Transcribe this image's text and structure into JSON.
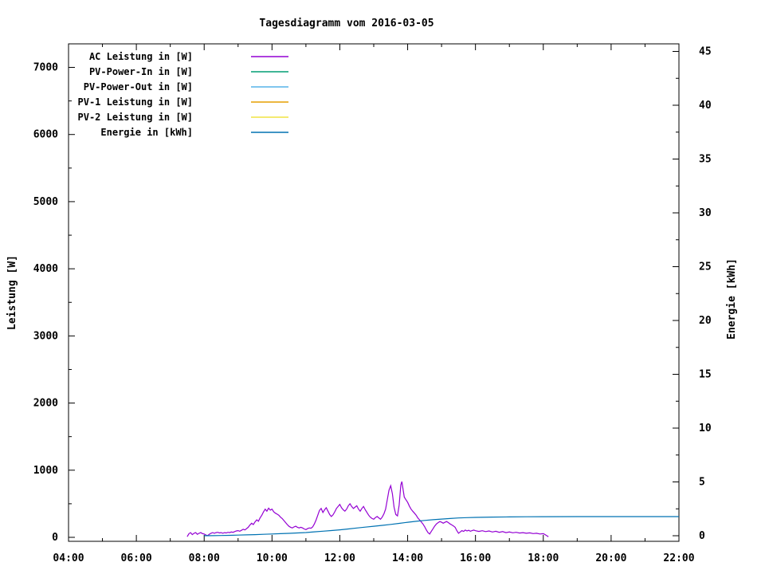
{
  "chart_data": {
    "type": "line",
    "title": "Tagesdiagramm vom 2016-03-05",
    "xlabel": "",
    "ylabel_left": "Leistung [W]",
    "ylabel_right": "Energie [kWh]",
    "grid": false,
    "legend_position": "top-left-inside",
    "background": "#ffffff",
    "border_color": "#000000",
    "x_range_hours": [
      4,
      22
    ],
    "x_major_ticks": [
      [
        4,
        "04:00"
      ],
      [
        6,
        "06:00"
      ],
      [
        8,
        "08:00"
      ],
      [
        10,
        "10:00"
      ],
      [
        12,
        "12:00"
      ],
      [
        14,
        "14:00"
      ],
      [
        16,
        "16:00"
      ],
      [
        18,
        "18:00"
      ],
      [
        20,
        "20:00"
      ],
      [
        22,
        "22:00"
      ]
    ],
    "x_minor_step_hours": 1,
    "y_left_range": [
      0,
      7400
    ],
    "y_left_major_ticks": [
      0,
      1000,
      2000,
      3000,
      4000,
      5000,
      6000,
      7000
    ],
    "y_left_minor_step": 500,
    "y_right_range": [
      0,
      45.5
    ],
    "y_right_major_ticks": [
      0,
      5,
      10,
      15,
      20,
      25,
      30,
      35,
      40,
      45
    ],
    "y_right_minor_step": 2.5,
    "series": [
      {
        "name": "AC Leistung in [W]",
        "color": "#9400D3",
        "axis": "left",
        "points": [
          [
            7.5,
            10
          ],
          [
            7.55,
            55
          ],
          [
            7.6,
            70
          ],
          [
            7.65,
            40
          ],
          [
            7.7,
            60
          ],
          [
            7.75,
            70
          ],
          [
            7.8,
            45
          ],
          [
            7.85,
            60
          ],
          [
            7.9,
            70
          ],
          [
            7.95,
            55
          ],
          [
            8.0,
            50
          ],
          [
            8.05,
            35
          ],
          [
            8.1,
            25
          ],
          [
            8.15,
            45
          ],
          [
            8.2,
            60
          ],
          [
            8.25,
            70
          ],
          [
            8.3,
            60
          ],
          [
            8.35,
            70
          ],
          [
            8.4,
            75
          ],
          [
            8.45,
            65
          ],
          [
            8.5,
            70
          ],
          [
            8.55,
            60
          ],
          [
            8.6,
            70
          ],
          [
            8.65,
            65
          ],
          [
            8.7,
            75
          ],
          [
            8.75,
            70
          ],
          [
            8.8,
            80
          ],
          [
            8.85,
            75
          ],
          [
            8.9,
            85
          ],
          [
            8.95,
            95
          ],
          [
            9.0,
            100
          ],
          [
            9.05,
            90
          ],
          [
            9.1,
            105
          ],
          [
            9.15,
            120
          ],
          [
            9.2,
            110
          ],
          [
            9.25,
            130
          ],
          [
            9.3,
            150
          ],
          [
            9.35,
            185
          ],
          [
            9.4,
            210
          ],
          [
            9.45,
            190
          ],
          [
            9.5,
            230
          ],
          [
            9.55,
            260
          ],
          [
            9.6,
            240
          ],
          [
            9.65,
            290
          ],
          [
            9.7,
            330
          ],
          [
            9.75,
            380
          ],
          [
            9.8,
            420
          ],
          [
            9.85,
            390
          ],
          [
            9.9,
            435
          ],
          [
            9.95,
            405
          ],
          [
            10.0,
            420
          ],
          [
            10.05,
            380
          ],
          [
            10.1,
            360
          ],
          [
            10.15,
            345
          ],
          [
            10.2,
            330
          ],
          [
            10.25,
            300
          ],
          [
            10.3,
            280
          ],
          [
            10.35,
            250
          ],
          [
            10.4,
            220
          ],
          [
            10.45,
            190
          ],
          [
            10.5,
            165
          ],
          [
            10.55,
            150
          ],
          [
            10.6,
            140
          ],
          [
            10.65,
            155
          ],
          [
            10.7,
            165
          ],
          [
            10.75,
            150
          ],
          [
            10.8,
            140
          ],
          [
            10.85,
            150
          ],
          [
            10.9,
            140
          ],
          [
            10.95,
            125
          ],
          [
            11.0,
            115
          ],
          [
            11.05,
            130
          ],
          [
            11.1,
            140
          ],
          [
            11.15,
            135
          ],
          [
            11.2,
            155
          ],
          [
            11.25,
            200
          ],
          [
            11.3,
            260
          ],
          [
            11.35,
            330
          ],
          [
            11.4,
            400
          ],
          [
            11.45,
            430
          ],
          [
            11.5,
            370
          ],
          [
            11.55,
            410
          ],
          [
            11.6,
            440
          ],
          [
            11.65,
            390
          ],
          [
            11.7,
            340
          ],
          [
            11.75,
            310
          ],
          [
            11.8,
            335
          ],
          [
            11.85,
            380
          ],
          [
            11.9,
            430
          ],
          [
            11.95,
            460
          ],
          [
            12.0,
            490
          ],
          [
            12.05,
            440
          ],
          [
            12.1,
            410
          ],
          [
            12.15,
            390
          ],
          [
            12.2,
            420
          ],
          [
            12.25,
            470
          ],
          [
            12.3,
            500
          ],
          [
            12.35,
            460
          ],
          [
            12.4,
            430
          ],
          [
            12.45,
            450
          ],
          [
            12.5,
            470
          ],
          [
            12.55,
            420
          ],
          [
            12.6,
            390
          ],
          [
            12.65,
            430
          ],
          [
            12.7,
            460
          ],
          [
            12.75,
            410
          ],
          [
            12.8,
            370
          ],
          [
            12.85,
            330
          ],
          [
            12.9,
            300
          ],
          [
            12.95,
            280
          ],
          [
            13.0,
            270
          ],
          [
            13.05,
            295
          ],
          [
            13.1,
            310
          ],
          [
            13.15,
            290
          ],
          [
            13.2,
            270
          ],
          [
            13.25,
            300
          ],
          [
            13.3,
            350
          ],
          [
            13.35,
            420
          ],
          [
            13.4,
            560
          ],
          [
            13.45,
            700
          ],
          [
            13.5,
            770
          ],
          [
            13.55,
            650
          ],
          [
            13.6,
            450
          ],
          [
            13.65,
            340
          ],
          [
            13.7,
            320
          ],
          [
            13.75,
            480
          ],
          [
            13.8,
            780
          ],
          [
            13.83,
            830
          ],
          [
            13.87,
            700
          ],
          [
            13.9,
            600
          ],
          [
            13.95,
            560
          ],
          [
            14.0,
            520
          ],
          [
            14.05,
            465
          ],
          [
            14.1,
            420
          ],
          [
            14.15,
            390
          ],
          [
            14.2,
            360
          ],
          [
            14.25,
            330
          ],
          [
            14.3,
            290
          ],
          [
            14.35,
            260
          ],
          [
            14.4,
            230
          ],
          [
            14.45,
            200
          ],
          [
            14.5,
            160
          ],
          [
            14.55,
            110
          ],
          [
            14.6,
            70
          ],
          [
            14.65,
            50
          ],
          [
            14.7,
            90
          ],
          [
            14.75,
            130
          ],
          [
            14.8,
            170
          ],
          [
            14.85,
            200
          ],
          [
            14.9,
            220
          ],
          [
            14.95,
            235
          ],
          [
            15.0,
            225
          ],
          [
            15.05,
            210
          ],
          [
            15.1,
            225
          ],
          [
            15.15,
            235
          ],
          [
            15.2,
            220
          ],
          [
            15.25,
            200
          ],
          [
            15.3,
            185
          ],
          [
            15.35,
            170
          ],
          [
            15.4,
            150
          ],
          [
            15.45,
            100
          ],
          [
            15.5,
            60
          ],
          [
            15.55,
            80
          ],
          [
            15.6,
            100
          ],
          [
            15.65,
            88
          ],
          [
            15.7,
            108
          ],
          [
            15.75,
            95
          ],
          [
            15.8,
            105
          ],
          [
            15.85,
            90
          ],
          [
            15.9,
            100
          ],
          [
            15.95,
            108
          ],
          [
            16.0,
            98
          ],
          [
            16.1,
            88
          ],
          [
            16.2,
            98
          ],
          [
            16.3,
            85
          ],
          [
            16.4,
            95
          ],
          [
            16.5,
            80
          ],
          [
            16.6,
            90
          ],
          [
            16.7,
            75
          ],
          [
            16.8,
            85
          ],
          [
            16.9,
            70
          ],
          [
            17.0,
            80
          ],
          [
            17.1,
            68
          ],
          [
            17.2,
            75
          ],
          [
            17.3,
            64
          ],
          [
            17.4,
            70
          ],
          [
            17.5,
            60
          ],
          [
            17.6,
            66
          ],
          [
            17.7,
            56
          ],
          [
            17.8,
            60
          ],
          [
            17.9,
            50
          ],
          [
            18.0,
            55
          ],
          [
            18.05,
            42
          ],
          [
            18.1,
            25
          ],
          [
            18.15,
            10
          ]
        ]
      },
      {
        "name": "PV-Power-In in [W]",
        "color": "#009E73",
        "axis": "left",
        "points": []
      },
      {
        "name": "PV-Power-Out in [W]",
        "color": "#56B4E9",
        "axis": "left",
        "points": []
      },
      {
        "name": "PV-1 Leistung in [W]",
        "color": "#E69F00",
        "axis": "left",
        "points": []
      },
      {
        "name": "PV-2 Leistung in [W]",
        "color": "#F0E442",
        "axis": "left",
        "points": []
      },
      {
        "name": "Energie in [kWh]",
        "color": "#0072B2",
        "axis": "right",
        "points": [
          [
            8.0,
            0.0
          ],
          [
            8.25,
            0.01
          ],
          [
            8.5,
            0.02
          ],
          [
            8.75,
            0.04
          ],
          [
            9.0,
            0.06
          ],
          [
            9.25,
            0.08
          ],
          [
            9.5,
            0.1
          ],
          [
            9.75,
            0.13
          ],
          [
            10.0,
            0.16
          ],
          [
            10.25,
            0.19
          ],
          [
            10.5,
            0.22
          ],
          [
            10.75,
            0.26
          ],
          [
            11.0,
            0.3
          ],
          [
            11.25,
            0.36
          ],
          [
            11.5,
            0.42
          ],
          [
            11.75,
            0.48
          ],
          [
            12.0,
            0.55
          ],
          [
            12.25,
            0.63
          ],
          [
            12.5,
            0.72
          ],
          [
            12.75,
            0.8
          ],
          [
            13.0,
            0.88
          ],
          [
            13.25,
            0.96
          ],
          [
            13.5,
            1.05
          ],
          [
            13.75,
            1.15
          ],
          [
            14.0,
            1.25
          ],
          [
            14.25,
            1.34
          ],
          [
            14.5,
            1.42
          ],
          [
            14.75,
            1.49
          ],
          [
            15.0,
            1.55
          ],
          [
            15.25,
            1.6
          ],
          [
            15.5,
            1.65
          ],
          [
            15.75,
            1.68
          ],
          [
            16.0,
            1.7
          ],
          [
            16.5,
            1.73
          ],
          [
            17.0,
            1.75
          ],
          [
            17.5,
            1.76
          ],
          [
            18.0,
            1.77
          ],
          [
            19.0,
            1.78
          ],
          [
            20.0,
            1.78
          ],
          [
            21.0,
            1.78
          ],
          [
            22.0,
            1.78
          ]
        ]
      }
    ]
  }
}
